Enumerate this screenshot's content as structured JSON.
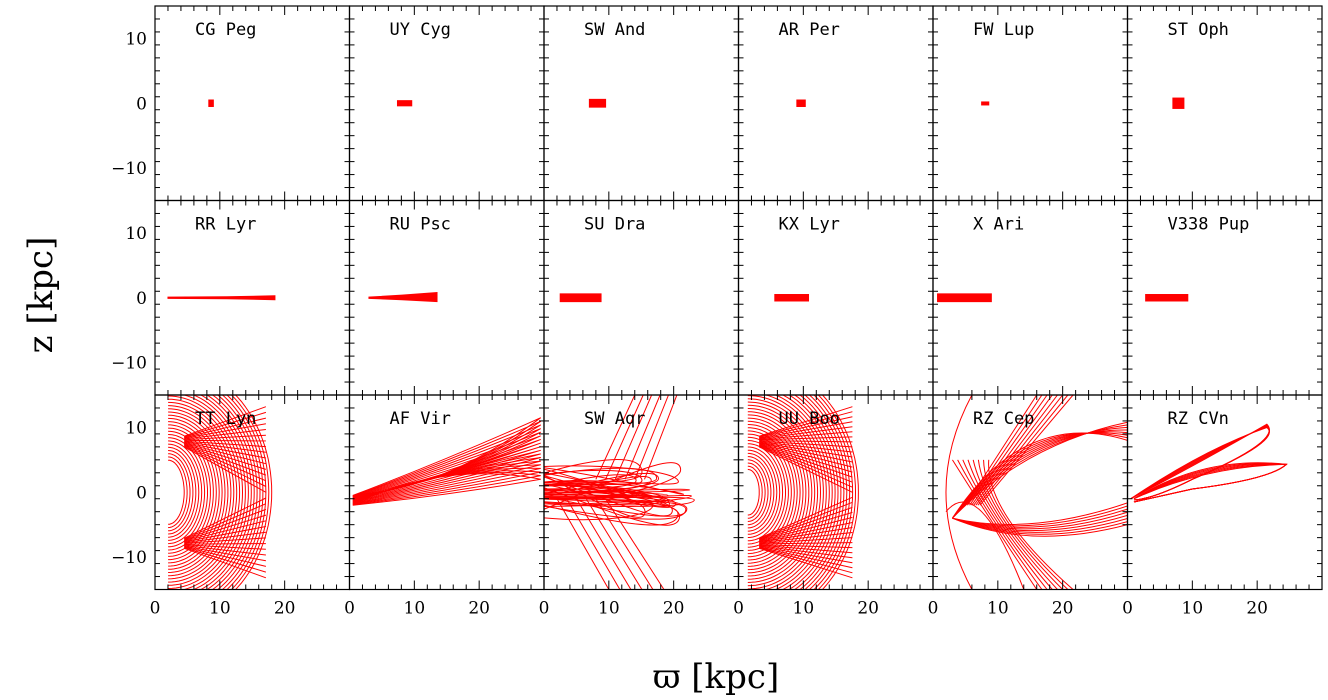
{
  "figure": {
    "xlabel": "ϖ [kpc]",
    "ylabel": "z [kpc]"
  },
  "chart_data": {
    "type": "line",
    "layout": "grid 3 rows x 6 columns, shared axes",
    "xlabel": "ϖ [kpc]",
    "ylabel": "z [kpc]",
    "xlim": [
      0,
      30
    ],
    "ylim": [
      -15,
      15
    ],
    "xticks": [
      0,
      10,
      20
    ],
    "yticks": [
      -10,
      0,
      10
    ],
    "color": "#ff0000",
    "grid": false,
    "panels": [
      {
        "name": "CG Peg",
        "row": 0,
        "col": 0,
        "shape": "box",
        "x_range": [
          8.3,
          9.0
        ],
        "z_range": [
          -0.5,
          0.5
        ]
      },
      {
        "name": "UY Cyg",
        "row": 0,
        "col": 1,
        "shape": "box",
        "x_range": [
          7.4,
          9.6
        ],
        "z_range": [
          -0.4,
          0.4
        ]
      },
      {
        "name": "SW And",
        "row": 0,
        "col": 2,
        "shape": "box",
        "x_range": [
          7.0,
          9.5
        ],
        "z_range": [
          -0.6,
          0.6
        ]
      },
      {
        "name": "AR Per",
        "row": 0,
        "col": 3,
        "shape": "box",
        "x_range": [
          9.0,
          10.3
        ],
        "z_range": [
          -0.5,
          0.5
        ]
      },
      {
        "name": "FW Lup",
        "row": 0,
        "col": 4,
        "shape": "box",
        "x_range": [
          7.5,
          8.6
        ],
        "z_range": [
          -0.2,
          0.2
        ]
      },
      {
        "name": "ST Oph",
        "row": 0,
        "col": 5,
        "shape": "box",
        "x_range": [
          7.0,
          8.7
        ],
        "z_range": [
          -0.8,
          0.8
        ]
      },
      {
        "name": "RR Lyr",
        "row": 1,
        "col": 0,
        "shape": "wedge",
        "x_range": [
          2.0,
          18.5
        ],
        "z_range": [
          -0.3,
          0.3
        ]
      },
      {
        "name": "RU Psc",
        "row": 1,
        "col": 1,
        "shape": "wedge",
        "x_range": [
          3.0,
          13.5
        ],
        "z_range": [
          -0.6,
          0.8
        ]
      },
      {
        "name": "SU Dra",
        "row": 1,
        "col": 2,
        "shape": "box",
        "x_range": [
          2.5,
          8.8
        ],
        "z_range": [
          -0.6,
          0.6
        ]
      },
      {
        "name": "KX Lyr",
        "row": 1,
        "col": 3,
        "shape": "box",
        "x_range": [
          5.6,
          10.8
        ],
        "z_range": [
          -0.5,
          0.5
        ]
      },
      {
        "name": "X Ari",
        "row": 1,
        "col": 4,
        "shape": "box",
        "x_range": [
          0.7,
          9.0
        ],
        "z_range": [
          -0.6,
          0.6
        ]
      },
      {
        "name": "V338 Pup",
        "row": 1,
        "col": 5,
        "shape": "box",
        "x_range": [
          2.8,
          9.3
        ],
        "z_range": [
          -0.5,
          0.5
        ]
      },
      {
        "name": "TT Lyn",
        "row": 2,
        "col": 0,
        "shape": "shell",
        "r_min": 4.5,
        "r_max": 18.0,
        "z_max": 15.0,
        "n_loops": 30
      },
      {
        "name": "AF Vir",
        "row": 2,
        "col": 1,
        "shape": "fan",
        "x_range": [
          0.5,
          29.5
        ],
        "z_inner": [
          -2.0,
          -0.5
        ],
        "z_outer": [
          2.0,
          11.5
        ],
        "n_loops": 18
      },
      {
        "name": "SW Aqr",
        "row": 2,
        "col": 2,
        "shape": "loops",
        "x_range": [
          0.0,
          24.0
        ],
        "z_range": [
          -15.0,
          15.0
        ],
        "n_loops": 26
      },
      {
        "name": "UU Boo",
        "row": 2,
        "col": 3,
        "shape": "shell",
        "r_min": 3.2,
        "r_max": 18.5,
        "z_max": 15.0,
        "n_loops": 34
      },
      {
        "name": "RZ Cep",
        "row": 2,
        "col": 4,
        "shape": "arcs",
        "x_range": [
          2.0,
          30.0
        ],
        "z_range": [
          -15.0,
          15.0
        ],
        "n_loops": 8
      },
      {
        "name": "RZ CVn",
        "row": 2,
        "col": 5,
        "shape": "rosette",
        "x_range": [
          0.5,
          24.5
        ],
        "z_range": [
          -1.5,
          11.0
        ],
        "n_loops": 6
      }
    ]
  }
}
